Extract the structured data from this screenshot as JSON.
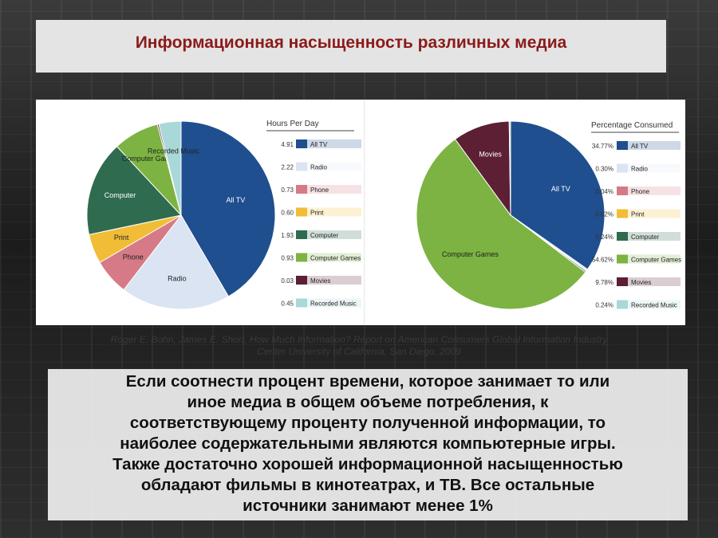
{
  "title": "Информационная насыщенность различных медиа",
  "citation": {
    "line1": "Roger E. Bohn, James E. Short, How Much Information? Report on American Consumers Global Information Industry",
    "line2": "Center University of California, San Diego, 2009"
  },
  "caption": [
    "Если соотнести процент времени, которое занимает то или",
    "иное медиа в общем объеме потребления, к",
    "соответствующему проценту полученной информации, то",
    "наиболее содержательными являются компьютерные игры.",
    "Также достаточно хорошей информационной насыщенностью",
    "обладают фильмы в кинотеатрах, и ТВ. Все остальные",
    "источники занимают менее 1%"
  ],
  "colors": {
    "All TV": "#1f4f8f",
    "Radio": "#dbe4f2",
    "Phone": "#d57a86",
    "Print": "#f1bd36",
    "Computer": "#2f6b4f",
    "Computer Games": "#7cb342",
    "Movies": "#5c1f33",
    "Recorded Music": "#a9d8d8"
  },
  "chart_data": [
    {
      "type": "pie",
      "legend_title": "Hours Per Day",
      "categories": [
        "All TV",
        "Radio",
        "Phone",
        "Print",
        "Computer",
        "Computer Games",
        "Movies",
        "Recorded Music"
      ],
      "values": [
        4.91,
        2.22,
        0.73,
        0.6,
        1.93,
        0.93,
        0.03,
        0.45
      ],
      "value_labels": [
        "4.91",
        "2.22",
        "0.73",
        "0.60",
        "1.93",
        "0.93",
        "0.03",
        "0.45"
      ],
      "legend_position": "right"
    },
    {
      "type": "pie",
      "legend_title": "Percentage Consumed",
      "categories": [
        "All TV",
        "Radio",
        "Phone",
        "Print",
        "Computer",
        "Computer Games",
        "Movies",
        "Recorded Music"
      ],
      "values": [
        34.77,
        0.3,
        0.04,
        0.02,
        0.24,
        54.62,
        9.78,
        0.24
      ],
      "value_labels": [
        "34.77%",
        "0.30%",
        "0.04%",
        "0.02%",
        "0.24%",
        "54.62%",
        "9.78%",
        "0.24%"
      ],
      "legend_position": "right"
    }
  ]
}
